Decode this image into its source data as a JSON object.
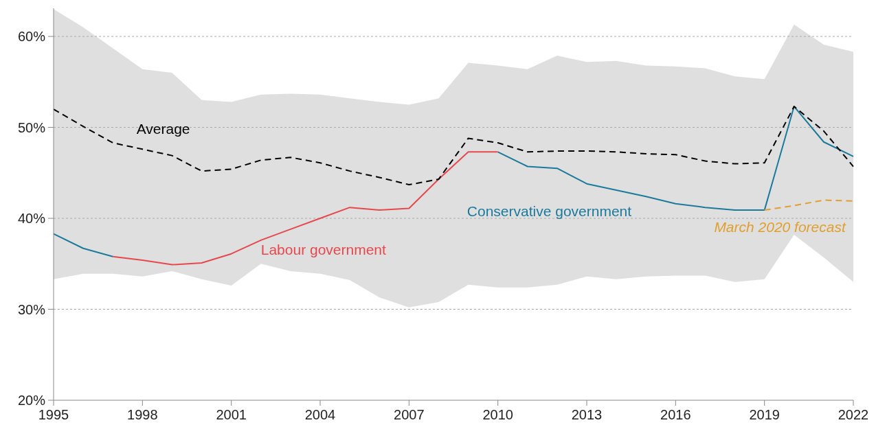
{
  "chart_data": {
    "type": "line",
    "x": [
      1995,
      1996,
      1997,
      1998,
      1999,
      2000,
      2001,
      2002,
      2003,
      2004,
      2005,
      2006,
      2007,
      2008,
      2009,
      2010,
      2011,
      2012,
      2013,
      2014,
      2015,
      2016,
      2017,
      2018,
      2019,
      2020,
      2021,
      2022
    ],
    "xlim": [
      1995,
      2022
    ],
    "xticks": [
      1995,
      1998,
      2001,
      2004,
      2007,
      2010,
      2013,
      2016,
      2019,
      2022
    ],
    "ylim": [
      20,
      63.1
    ],
    "yticks": [
      {
        "value": 20,
        "label": "20%"
      },
      {
        "value": 30,
        "label": "30%"
      },
      {
        "value": 40,
        "label": "40%"
      },
      {
        "value": 50,
        "label": "50%"
      },
      {
        "value": 60,
        "label": "60%"
      }
    ],
    "grid": "y",
    "series": [
      {
        "name": "Conservative government",
        "color": "#1a7a9c",
        "line_style": "solid",
        "values": [
          38.3,
          36.7,
          35.8,
          null,
          null,
          null,
          null,
          null,
          null,
          null,
          null,
          null,
          null,
          null,
          null,
          47.3,
          45.7,
          45.5,
          43.8,
          43.1,
          42.4,
          41.6,
          41.2,
          40.9,
          40.9,
          52.3,
          48.4,
          46.8
        ]
      },
      {
        "name": "Labour government",
        "color": "#e8474c",
        "line_style": "solid",
        "values": [
          null,
          null,
          35.8,
          35.4,
          34.9,
          35.1,
          36.1,
          37.6,
          38.8,
          40.0,
          41.2,
          40.9,
          41.1,
          44.3,
          47.3,
          47.3,
          null,
          null,
          null,
          null,
          null,
          null,
          null,
          null,
          null,
          null,
          null,
          null
        ]
      },
      {
        "name": "March 2020 forecast",
        "color": "#e0a030",
        "line_style": "dashed",
        "values": [
          null,
          null,
          null,
          null,
          null,
          null,
          null,
          null,
          null,
          null,
          null,
          null,
          null,
          null,
          null,
          null,
          null,
          null,
          null,
          null,
          null,
          null,
          null,
          null,
          40.9,
          41.4,
          42.0,
          41.9
        ]
      },
      {
        "name": "Average",
        "color": "#000000",
        "line_style": "dashed",
        "values": [
          52.0,
          50.1,
          48.3,
          47.6,
          46.9,
          45.2,
          45.4,
          46.4,
          46.7,
          46.1,
          45.2,
          44.5,
          43.7,
          44.3,
          48.8,
          48.3,
          47.3,
          47.4,
          47.4,
          47.3,
          47.1,
          47.0,
          46.3,
          46.0,
          46.1,
          52.3,
          49.6,
          45.7
        ],
        "lower": [
          33.3,
          33.9,
          33.9,
          33.6,
          34.2,
          33.3,
          32.6,
          35.0,
          34.2,
          33.9,
          33.2,
          31.3,
          30.2,
          30.8,
          32.7,
          32.4,
          32.4,
          32.7,
          33.6,
          33.3,
          33.6,
          33.7,
          33.7,
          33.0,
          33.3,
          38.2,
          35.7,
          33.0
        ],
        "upper": [
          63.0,
          61.0,
          58.7,
          56.4,
          56.0,
          53.0,
          52.8,
          53.6,
          53.7,
          53.6,
          53.2,
          52.8,
          52.5,
          53.2,
          57.1,
          56.8,
          56.4,
          57.9,
          57.2,
          57.3,
          56.8,
          56.7,
          56.5,
          55.6,
          55.3,
          61.3,
          59.1,
          58.3
        ]
      }
    ]
  }
}
